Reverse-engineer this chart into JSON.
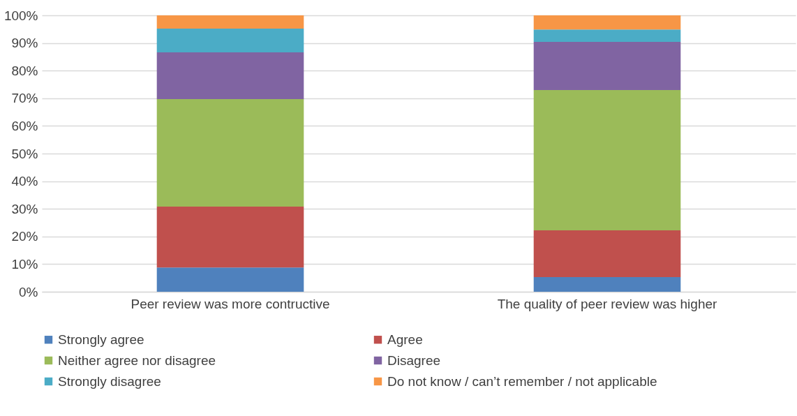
{
  "chart_data": {
    "type": "bar",
    "stacked": true,
    "categories": [
      "Peer review was more contructive",
      "The quality of peer review was higher"
    ],
    "series": [
      {
        "name": "Strongly agree",
        "color": "#4f81bd",
        "values": [
          8.8,
          5.3
        ]
      },
      {
        "name": "Agree",
        "color": "#c0504d",
        "values": [
          22.0,
          16.9
        ]
      },
      {
        "name": "Neither agree nor disagree",
        "color": "#9bbb59",
        "values": [
          38.9,
          50.8
        ]
      },
      {
        "name": "Disagree",
        "color": "#8064a2",
        "values": [
          16.9,
          17.4
        ]
      },
      {
        "name": "Strongly disagree",
        "color": "#4bacc6",
        "values": [
          8.6,
          4.5
        ]
      },
      {
        "name": "Do not know / can’t remember / not applicable",
        "color": "#f79646",
        "values": [
          4.8,
          5.1
        ]
      }
    ],
    "ylim": [
      0,
      100
    ],
    "yticks": [
      {
        "value": 0,
        "label": "0%"
      },
      {
        "value": 10,
        "label": "10%"
      },
      {
        "value": 20,
        "label": "20%"
      },
      {
        "value": 30,
        "label": "30%"
      },
      {
        "value": 40,
        "label": "40%"
      },
      {
        "value": 50,
        "label": "50%"
      },
      {
        "value": 60,
        "label": "60%"
      },
      {
        "value": 70,
        "label": "70%"
      },
      {
        "value": 80,
        "label": "80%"
      },
      {
        "value": 90,
        "label": "90%"
      },
      {
        "value": 100,
        "label": "100%"
      }
    ],
    "grid": "y",
    "legend": "bottom"
  }
}
